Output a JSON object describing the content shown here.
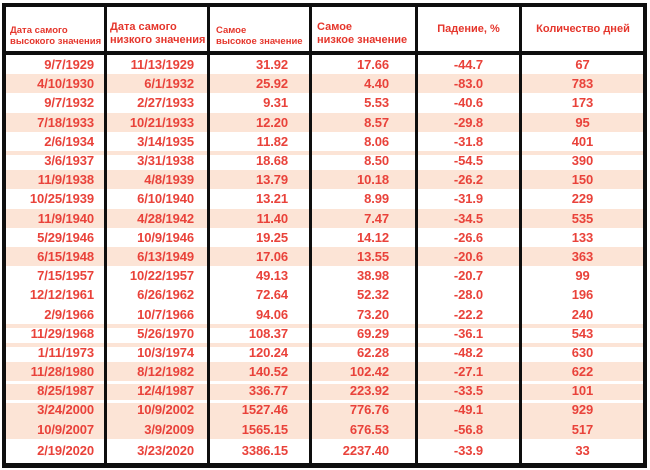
{
  "chart_data": {
    "type": "table",
    "columns": [
      "Дата самого\nвысокого значения",
      "Дата самого\nнизкого значения",
      "Самое\nвысокое значение",
      "Самое\nнизкое значение",
      "Падение, %",
      "Количество дней"
    ],
    "rows": [
      {
        "cells": [
          "9/7/1929",
          "11/13/1929",
          "31.92",
          "17.66",
          "-44.7",
          "67"
        ],
        "band": "white",
        "sep": null,
        "tall": false
      },
      {
        "cells": [
          "4/10/1930",
          "6/1/1932",
          "25.92",
          "4.40",
          "-83.0",
          "783"
        ],
        "band": "peach",
        "sep": null,
        "tall": false
      },
      {
        "cells": [
          "9/7/1932",
          "2/27/1933",
          "9.31",
          "5.53",
          "-40.6",
          "173"
        ],
        "band": "white",
        "sep": null,
        "tall": false
      },
      {
        "cells": [
          "7/18/1933",
          "10/21/1933",
          "12.20",
          "8.57",
          "-29.8",
          "95"
        ],
        "band": "peach",
        "sep": null,
        "tall": false
      },
      {
        "cells": [
          "2/6/1934",
          "3/14/1935",
          "11.82",
          "8.06",
          "-31.8",
          "401"
        ],
        "band": "white",
        "sep": null,
        "tall": false
      },
      {
        "cells": [
          "3/6/1937",
          "3/31/1938",
          "18.68",
          "8.50",
          "-54.5",
          "390"
        ],
        "band": "white",
        "sep": "peach",
        "tall": false
      },
      {
        "cells": [
          "11/9/1938",
          "4/8/1939",
          "13.79",
          "10.18",
          "-26.2",
          "150"
        ],
        "band": "peach",
        "sep": null,
        "tall": false
      },
      {
        "cells": [
          "10/25/1939",
          "6/10/1940",
          "13.21",
          "8.99",
          "-31.9",
          "229"
        ],
        "band": "white",
        "sep": null,
        "tall": false
      },
      {
        "cells": [
          "11/9/1940",
          "4/28/1942",
          "11.40",
          "7.47",
          "-34.5",
          "535"
        ],
        "band": "peach",
        "sep": null,
        "tall": false
      },
      {
        "cells": [
          "5/29/1946",
          "10/9/1946",
          "19.25",
          "14.12",
          "-26.6",
          "133"
        ],
        "band": "white",
        "sep": null,
        "tall": false
      },
      {
        "cells": [
          "6/15/1948",
          "6/13/1949",
          "17.06",
          "13.55",
          "-20.6",
          "363"
        ],
        "band": "peach",
        "sep": null,
        "tall": false
      },
      {
        "cells": [
          "7/15/1957",
          "10/22/1957",
          "49.13",
          "38.98",
          "-20.7",
          "99"
        ],
        "band": "white",
        "sep": null,
        "tall": false
      },
      {
        "cells": [
          "12/12/1961",
          "6/26/1962",
          "72.64",
          "52.32",
          "-28.0",
          "196"
        ],
        "band": "white",
        "sep": null,
        "tall": false
      },
      {
        "cells": [
          "2/9/1966",
          "10/7/1966",
          "94.06",
          "73.20",
          "-22.2",
          "240"
        ],
        "band": "white",
        "sep": null,
        "tall": false
      },
      {
        "cells": [
          "11/29/1968",
          "5/26/1970",
          "108.37",
          "69.29",
          "-36.1",
          "543"
        ],
        "band": "white",
        "sep": "peach",
        "tall": false
      },
      {
        "cells": [
          "1/11/1973",
          "10/3/1974",
          "120.24",
          "62.28",
          "-48.2",
          "630"
        ],
        "band": "white",
        "sep": "peach",
        "tall": false
      },
      {
        "cells": [
          "11/28/1980",
          "8/12/1982",
          "140.52",
          "102.42",
          "-27.1",
          "622"
        ],
        "band": "peach",
        "sep": null,
        "tall": false
      },
      {
        "cells": [
          "8/25/1987",
          "12/4/1987",
          "336.77",
          "223.92",
          "-33.5",
          "101"
        ],
        "band": "peach",
        "sep": "white",
        "tall": false
      },
      {
        "cells": [
          "3/24/2000",
          "10/9/2002",
          "1527.46",
          "776.76",
          "-49.1",
          "929"
        ],
        "band": "peach",
        "sep": "white",
        "tall": false
      },
      {
        "cells": [
          "10/9/2007",
          "3/9/2009",
          "1565.15",
          "676.53",
          "-56.8",
          "517"
        ],
        "band": "peach",
        "sep": null,
        "tall": false
      },
      {
        "cells": [
          "2/19/2020",
          "3/23/2020",
          "3386.15",
          "2237.40",
          "-33.9",
          "33"
        ],
        "band": "white",
        "sep": null,
        "tall": true
      }
    ]
  },
  "colors": {
    "header_text_red": "#e5362c",
    "cell_text_red": "#e9423a",
    "band_peach": "#fce4d6",
    "border_black": "#0e0e0e",
    "background": "#ffffff"
  }
}
